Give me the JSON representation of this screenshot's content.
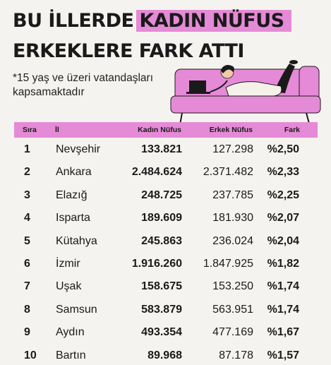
{
  "title": {
    "line1_plain": "BU İLLERDE",
    "line1_highlight": "KADIN NÜFUS",
    "line2": "ERKEKLERE FARK ATTI"
  },
  "subtitle": "*15 yaş ve üzeri vatandaşları kapsamaktadır",
  "colors": {
    "accent": "#e58ad6",
    "background": "#f5f3ef",
    "text": "#1a1a1a"
  },
  "table": {
    "headers": {
      "rank": "Sıra",
      "city": "İl",
      "female": "Kadın Nüfus",
      "male": "Erkek Nüfus",
      "diff": "Fark"
    },
    "rows": [
      {
        "rank": "1",
        "city": "Nevşehir",
        "female": "133.821",
        "male": "127.298",
        "diff": "%2,50"
      },
      {
        "rank": "2",
        "city": "Ankara",
        "female": "2.484.624",
        "male": "2.371.482",
        "diff": "%2,33"
      },
      {
        "rank": "3",
        "city": "Elazığ",
        "female": "248.725",
        "male": "237.785",
        "diff": "%2,25"
      },
      {
        "rank": "4",
        "city": "Isparta",
        "female": "189.609",
        "male": "181.930",
        "diff": "%2,07"
      },
      {
        "rank": "5",
        "city": "Kütahya",
        "female": "245.863",
        "male": "236.024",
        "diff": "%2,04"
      },
      {
        "rank": "6",
        "city": "İzmir",
        "female": "1.916.260",
        "male": "1.847.925",
        "diff": "%1,82"
      },
      {
        "rank": "7",
        "city": "Uşak",
        "female": "158.675",
        "male": "153.250",
        "diff": "%1,74"
      },
      {
        "rank": "8",
        "city": "Samsun",
        "female": "583.879",
        "male": "563.951",
        "diff": "%1,74"
      },
      {
        "rank": "9",
        "city": "Aydın",
        "female": "493.354",
        "male": "477.169",
        "diff": "%1,67"
      },
      {
        "rank": "10",
        "city": "Bartın",
        "female": "89.968",
        "male": "87.178",
        "diff": "%1,57"
      }
    ]
  }
}
